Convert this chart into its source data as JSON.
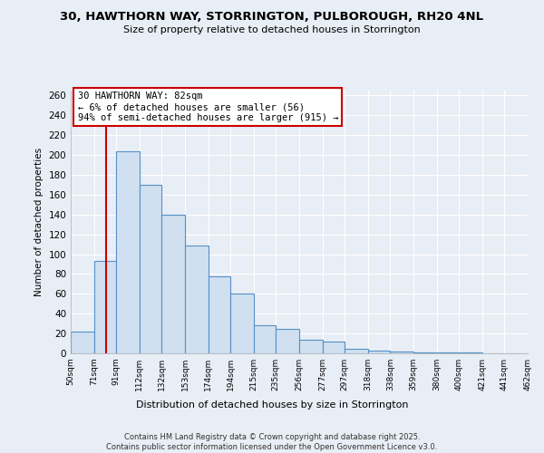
{
  "title": "30, HAWTHORN WAY, STORRINGTON, PULBOROUGH, RH20 4NL",
  "subtitle": "Size of property relative to detached houses in Storrington",
  "xlabel": "Distribution of detached houses by size in Storrington",
  "ylabel": "Number of detached properties",
  "bar_color": "#d0e0f0",
  "bar_edge_color": "#5590c8",
  "property_line_color": "#cc0000",
  "annotation_box_color": "#cc0000",
  "background_color": "#e8eef5",
  "plot_bg_color": "#e8eef5",
  "bins": [
    50,
    71,
    91,
    112,
    132,
    153,
    174,
    194,
    215,
    235,
    256,
    277,
    297,
    318,
    338,
    359,
    380,
    400,
    421,
    441,
    462
  ],
  "counts": [
    22,
    93,
    204,
    170,
    140,
    109,
    78,
    60,
    28,
    25,
    14,
    12,
    5,
    3,
    2,
    1,
    1,
    1,
    0,
    0
  ],
  "property_size": 82,
  "annotation_title": "30 HAWTHORN WAY: 82sqm",
  "annotation_line2": "← 6% of detached houses are smaller (56)",
  "annotation_line3": "94% of semi-detached houses are larger (915) →",
  "ylim": [
    0,
    265
  ],
  "yticks": [
    0,
    20,
    40,
    60,
    80,
    100,
    120,
    140,
    160,
    180,
    200,
    220,
    240,
    260
  ],
  "footer_line1": "Contains HM Land Registry data © Crown copyright and database right 2025.",
  "footer_line2": "Contains public sector information licensed under the Open Government Licence v3.0.",
  "grid_color": "#ffffff",
  "tick_labels": [
    "50sqm",
    "71sqm",
    "91sqm",
    "112sqm",
    "132sqm",
    "153sqm",
    "174sqm",
    "194sqm",
    "215sqm",
    "235sqm",
    "256sqm",
    "277sqm",
    "297sqm",
    "318sqm",
    "338sqm",
    "359sqm",
    "380sqm",
    "400sqm",
    "421sqm",
    "441sqm",
    "462sqm"
  ]
}
